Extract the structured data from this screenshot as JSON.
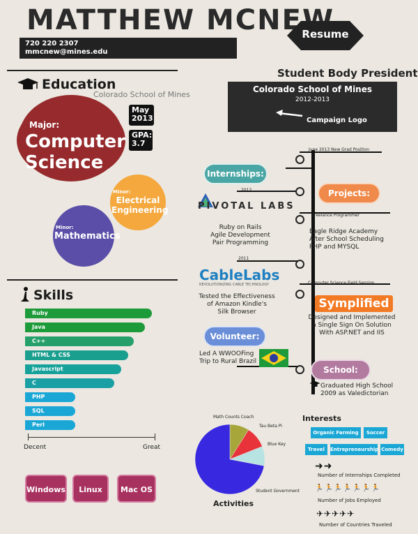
{
  "header": {
    "name": "MATTHEW MCNEW.",
    "phone": "720 220 2307",
    "email": "mmcnew@mines.edu",
    "resume_label": "Resume"
  },
  "education": {
    "title": "Education",
    "school": "Colorado School of Mines",
    "graduation": "May 2013",
    "gpa": "GPA: 3.7",
    "major_label": "Major:",
    "major": "Computer Science",
    "minor1_label": "Minor:",
    "minor1": "Electrical Engineering",
    "minor2_label": "Minor:",
    "minor2": "Mathematics"
  },
  "skills": {
    "title": "Skills",
    "items": [
      {
        "label": "Ruby",
        "level": 0.91,
        "color": "#1d9a3a"
      },
      {
        "label": "Java",
        "level": 0.86,
        "color": "#1d9a3a"
      },
      {
        "label": "C++",
        "level": 0.78,
        "color": "#26a06a"
      },
      {
        "label": "HTML & CSS",
        "level": 0.74,
        "color": "#1a9e8e"
      },
      {
        "label": "Javascript",
        "level": 0.69,
        "color": "#16a29a"
      },
      {
        "label": "C",
        "level": 0.64,
        "color": "#1aa0a4"
      },
      {
        "label": "PHP",
        "level": 0.36,
        "color": "#1aa7d6"
      },
      {
        "label": "SQL",
        "level": 0.36,
        "color": "#1aa7d6"
      },
      {
        "label": "Perl",
        "level": 0.36,
        "color": "#1aa7d6"
      }
    ],
    "scale_low": "Decent",
    "scale_high": "Great"
  },
  "os": [
    "Windows",
    "Linux",
    "Mac OS"
  ],
  "student_body": {
    "title": "Student Body President",
    "school": "Colorado School of Mines",
    "years": "2012-2013",
    "logo_label": "Campaign Logo"
  },
  "timeline": {
    "top_label": "June 2013 New Grad Position",
    "internships": "Internships:",
    "pivotal_year": "2012",
    "pivotal_logo": "PIVOTAL LABS",
    "pivotal_desc": [
      "Ruby on Rails",
      "Agile Development",
      "Pair Programming"
    ],
    "projects": "Projects:",
    "freelance_label": "Freelance Programmer",
    "eagle_desc": [
      "Eagle Ridge Academy",
      "After School Scheduling",
      "PHP and MYSQL"
    ],
    "cable_year": "2011",
    "cable_logo": "CableLabs",
    "cable_tag": "REVOLUTIONIZING CABLE TECHNOLOGY",
    "cable_desc": [
      "Tested the Effectiveness",
      "of Amazon Kindle's",
      "Silk Browser"
    ],
    "field_session_label": "Computer Science Field Session",
    "symplified": "Symplified",
    "symplified_desc": [
      "Designed and Implemented",
      "a Single Sign On Solution",
      "With ASP.NET and IIS"
    ],
    "volunteer": "Volunteer:",
    "volunteer_desc": [
      "Led A WWOOFing",
      "Trip to Rural Brazil"
    ],
    "school": "School:",
    "school_desc": [
      "Graduated High School",
      "2009 as Valedictorian"
    ]
  },
  "activities": {
    "title": "Activities",
    "chart_data": {
      "type": "pie",
      "labels": [
        "Math Counts Coach",
        "Tau Beta Pi",
        "Blue Key",
        "Student Government"
      ],
      "values": [
        9,
        10,
        9,
        72
      ],
      "colors": [
        "#a6a63a",
        "#e8333a",
        "#b7e3e3",
        "#3828e0"
      ]
    }
  },
  "interests": {
    "title": "Interests",
    "tags": [
      "Organic Farming",
      "Soccer",
      "Travel",
      "Entrepreneurship",
      "Comedy"
    ],
    "internships_caption": "Number of Internships Completed",
    "internships_icons": "➜➜",
    "jobs_caption": "Number of Jobs Employed",
    "jobs_icons": "🏃🏃🏃🏃🏃🏃🏃",
    "countries_caption": "Number of Countries Traveled",
    "countries_icons": "✈✈✈✈✈"
  }
}
